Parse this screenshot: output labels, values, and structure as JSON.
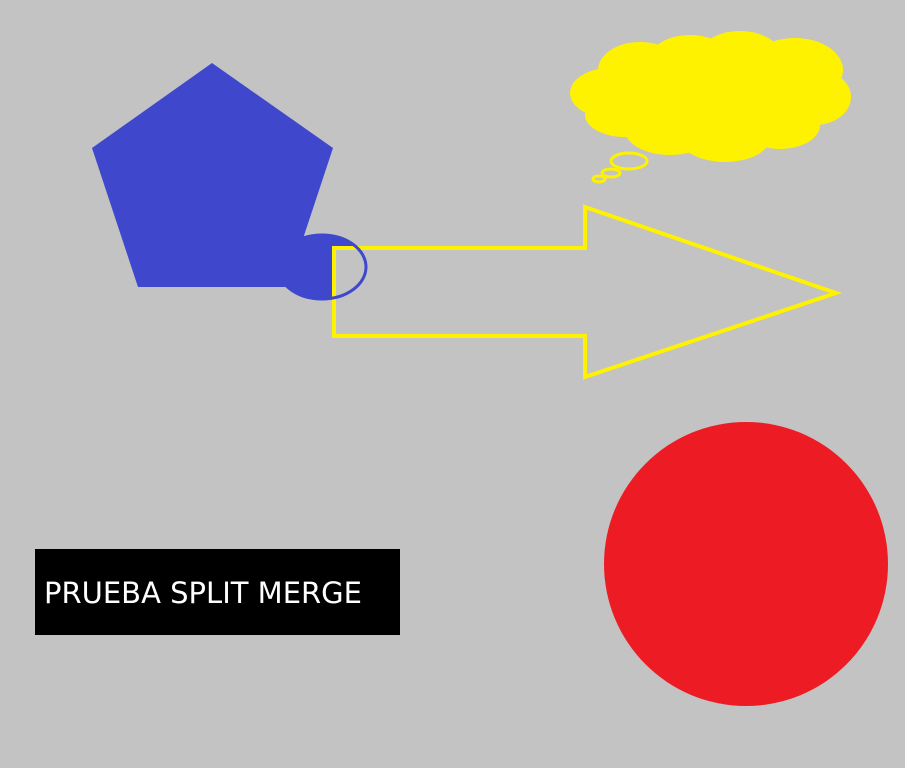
{
  "canvas": {
    "background_color": "#c3c3c3"
  },
  "shapes": {
    "pentagon": {
      "fill": "#3f48cc",
      "description_name": "pentagon"
    },
    "ellipse": {
      "fill": "#3f48cc",
      "stroke": "#3f48cc"
    },
    "arrow": {
      "stroke": "#fff200",
      "fill": "none"
    },
    "cloud": {
      "fill": "#fff200",
      "stroke": "#fff200"
    },
    "circle": {
      "fill": "#ed1c24"
    }
  },
  "label": {
    "text": "PRUEBA SPLIT MERGE",
    "background": "#000000",
    "color": "#ffffff"
  }
}
